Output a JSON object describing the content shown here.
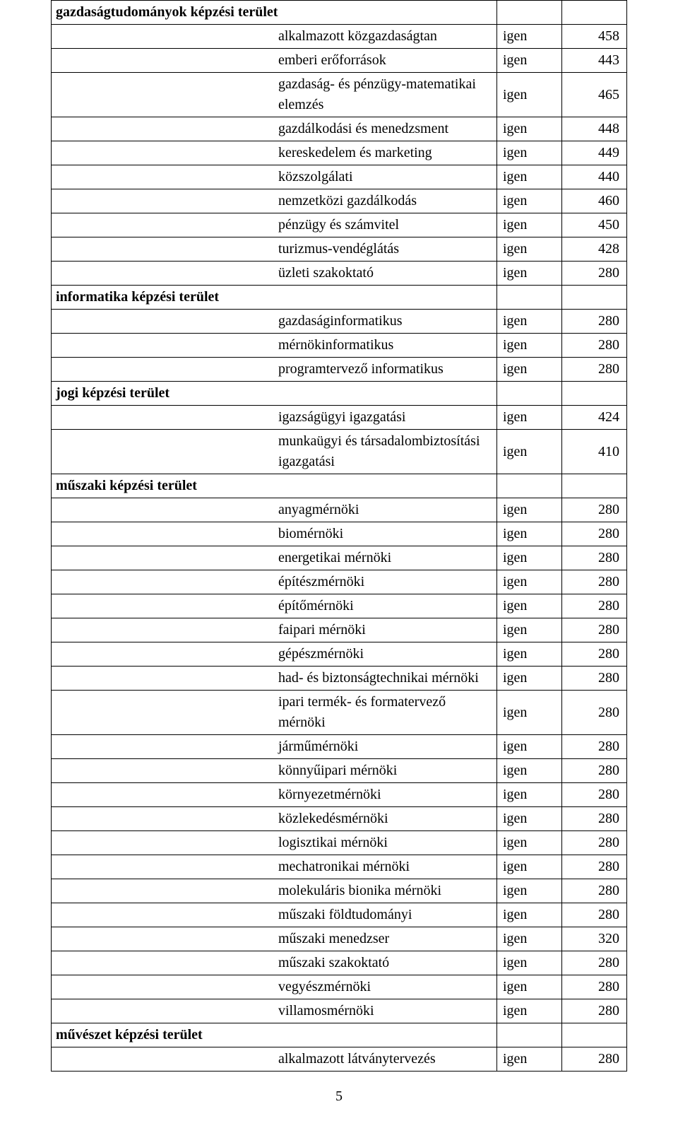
{
  "page_number": "5",
  "columns": {
    "affirm": "igen"
  },
  "sections": [
    {
      "title": "gazdaságtudományok képzési terület",
      "rows": [
        {
          "name": "alkalmazott közgazdaságtan",
          "affirm": "igen",
          "value": "458"
        },
        {
          "name": "emberi erőforrások",
          "affirm": "igen",
          "value": "443"
        },
        {
          "name": "gazdaság- és pénzügy-matematikai elemzés",
          "affirm": "igen",
          "value": "465"
        },
        {
          "name": "gazdálkodási és menedzsment",
          "affirm": "igen",
          "value": "448"
        },
        {
          "name": "kereskedelem és marketing",
          "affirm": "igen",
          "value": "449"
        },
        {
          "name": "közszolgálati",
          "affirm": "igen",
          "value": "440"
        },
        {
          "name": "nemzetközi gazdálkodás",
          "affirm": "igen",
          "value": "460"
        },
        {
          "name": "pénzügy és számvitel",
          "affirm": "igen",
          "value": "450"
        },
        {
          "name": "turizmus-vendéglátás",
          "affirm": "igen",
          "value": "428"
        },
        {
          "name": "üzleti szakoktató",
          "affirm": "igen",
          "value": "280"
        }
      ]
    },
    {
      "title": "informatika képzési terület",
      "rows": [
        {
          "name": "gazdaságinformatikus",
          "affirm": "igen",
          "value": "280"
        },
        {
          "name": "mérnökinformatikus",
          "affirm": "igen",
          "value": "280"
        },
        {
          "name": "programtervező informatikus",
          "affirm": "igen",
          "value": "280"
        }
      ]
    },
    {
      "title": "jogi képzési terület",
      "rows": [
        {
          "name": "igazságügyi igazgatási",
          "affirm": "igen",
          "value": "424"
        },
        {
          "name": "munkaügyi és társadalombiztosítási igazgatási",
          "affirm": "igen",
          "value": "410"
        }
      ]
    },
    {
      "title": "műszaki képzési terület",
      "rows": [
        {
          "name": "anyagmérnöki",
          "affirm": "igen",
          "value": "280"
        },
        {
          "name": "biomérnöki",
          "affirm": "igen",
          "value": "280"
        },
        {
          "name": "energetikai mérnöki",
          "affirm": "igen",
          "value": "280"
        },
        {
          "name": "építészmérnöki",
          "affirm": "igen",
          "value": "280"
        },
        {
          "name": "építőmérnöki",
          "affirm": "igen",
          "value": "280"
        },
        {
          "name": "faipari mérnöki",
          "affirm": "igen",
          "value": "280"
        },
        {
          "name": "gépészmérnöki",
          "affirm": "igen",
          "value": "280"
        },
        {
          "name": "had- és biztonságtechnikai mérnöki",
          "affirm": "igen",
          "value": "280"
        },
        {
          "name": "ipari termék- és formatervező mérnöki",
          "affirm": "igen",
          "value": "280"
        },
        {
          "name": "járműmérnöki",
          "affirm": "igen",
          "value": "280"
        },
        {
          "name": "könnyűipari mérnöki",
          "affirm": "igen",
          "value": "280"
        },
        {
          "name": "környezetmérnöki",
          "affirm": "igen",
          "value": "280"
        },
        {
          "name": "közlekedésmérnöki",
          "affirm": "igen",
          "value": "280"
        },
        {
          "name": "logisztikai mérnöki",
          "affirm": "igen",
          "value": "280"
        },
        {
          "name": "mechatronikai mérnöki",
          "affirm": "igen",
          "value": "280"
        },
        {
          "name": "molekuláris bionika mérnöki",
          "affirm": "igen",
          "value": "280"
        },
        {
          "name": "műszaki földtudományi",
          "affirm": "igen",
          "value": "280"
        },
        {
          "name": "műszaki menedzser",
          "affirm": "igen",
          "value": "320"
        },
        {
          "name": "műszaki szakoktató",
          "affirm": "igen",
          "value": "280"
        },
        {
          "name": "vegyészmérnöki",
          "affirm": "igen",
          "value": "280"
        },
        {
          "name": "villamosmérnöki",
          "affirm": "igen",
          "value": "280"
        }
      ]
    },
    {
      "title": "művészet képzési terület",
      "rows": [
        {
          "name": "alkalmazott látványtervezés",
          "affirm": "igen",
          "value": "280"
        }
      ]
    }
  ]
}
